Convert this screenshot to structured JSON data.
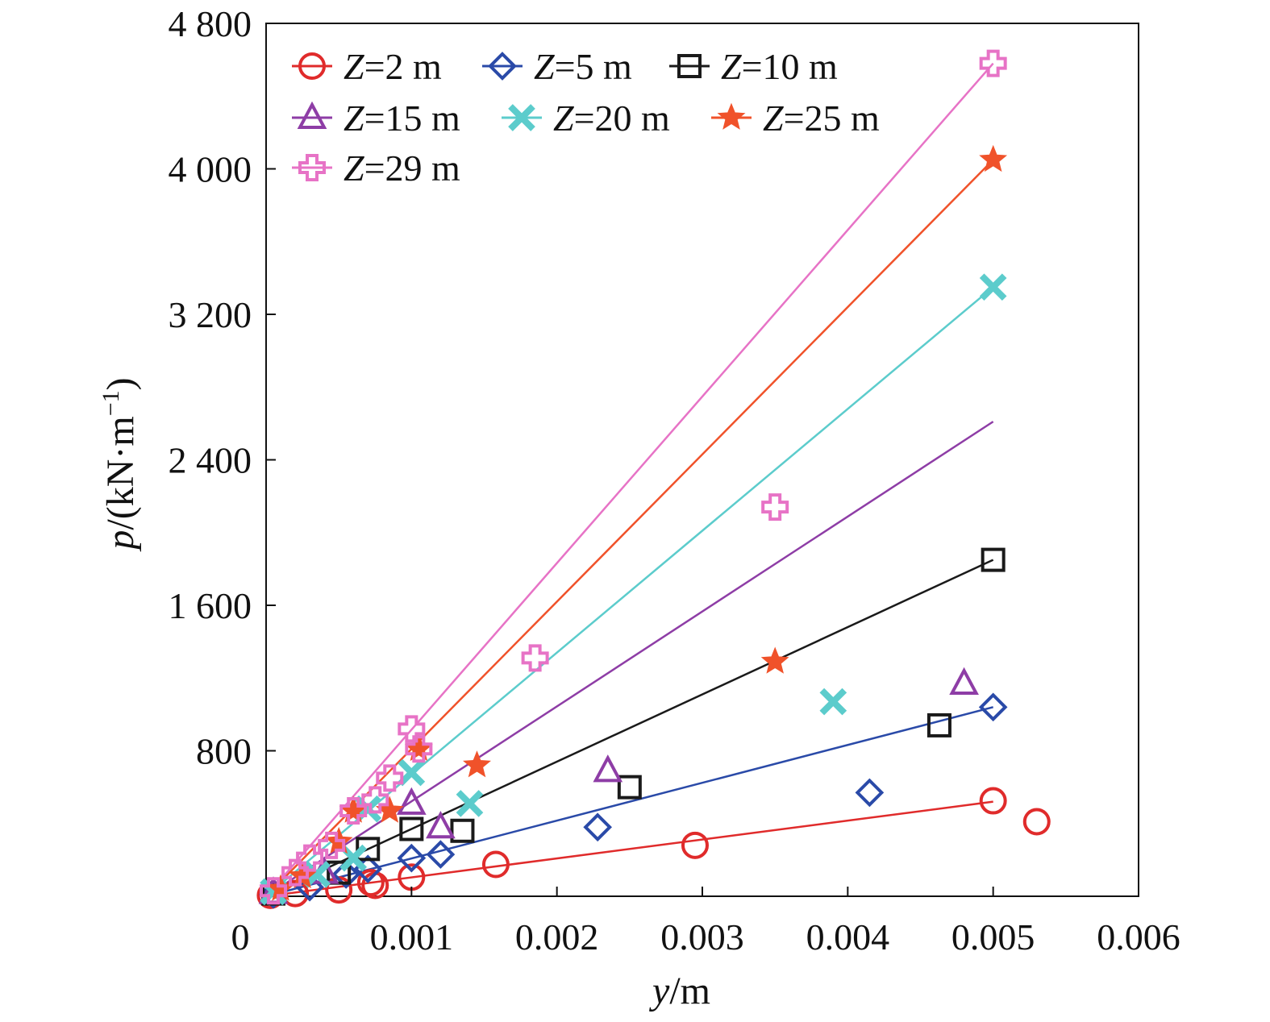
{
  "chart_data": {
    "type": "scatter",
    "xlabel": {
      "var": "y",
      "unit": "/m"
    },
    "ylabel": {
      "var": "p",
      "unit": "/(kN·m",
      "sup": "−1",
      "close": ")"
    },
    "xlim": [
      0,
      0.006
    ],
    "ylim": [
      0,
      4800
    ],
    "x_ticks": [
      0,
      0.001,
      0.002,
      0.003,
      0.004,
      0.005,
      0.006
    ],
    "x_tick_labels": [
      "0",
      "0.001",
      "0.002",
      "0.003",
      "0.004",
      "0.005",
      "0.006"
    ],
    "y_ticks": [
      800,
      1600,
      2400,
      3200,
      4000,
      4800
    ],
    "y_tick_labels": [
      "800",
      "1 600",
      "2 400",
      "3 200",
      "4 000",
      "4 800"
    ],
    "grid": false,
    "legend_position": "top-left",
    "series": [
      {
        "name_var": "Z",
        "name_rest": "=2 m",
        "color": "#e02b2b",
        "marker": "circle",
        "points": [
          [
            3e-05,
            5
          ],
          [
            0.0002,
            15
          ],
          [
            0.0005,
            35
          ],
          [
            0.00072,
            75
          ],
          [
            0.00075,
            60
          ],
          [
            0.001,
            105
          ],
          [
            0.00158,
            175
          ],
          [
            0.00295,
            280
          ],
          [
            0.005,
            525
          ],
          [
            0.0053,
            410
          ]
        ],
        "line": [
          [
            0,
            0
          ],
          [
            0.005,
            520
          ]
        ]
      },
      {
        "name_var": "Z",
        "name_rest": "=5 m",
        "color": "#2a4aa8",
        "marker": "diamond",
        "points": [
          [
            5e-05,
            10
          ],
          [
            0.0003,
            50
          ],
          [
            0.00055,
            120
          ],
          [
            0.0007,
            150
          ],
          [
            0.001,
            210
          ],
          [
            0.0012,
            230
          ],
          [
            0.00228,
            380
          ],
          [
            0.00415,
            570
          ],
          [
            0.005,
            1040
          ]
        ],
        "line": [
          [
            0,
            0
          ],
          [
            0.005,
            1040
          ]
        ]
      },
      {
        "name_var": "Z",
        "name_rest": "=10 m",
        "color": "#1a1a1a",
        "marker": "square",
        "points": [
          [
            5e-05,
            15
          ],
          [
            0.0005,
            130
          ],
          [
            0.0007,
            260
          ],
          [
            0.001,
            370
          ],
          [
            0.00135,
            360
          ],
          [
            0.0025,
            600
          ],
          [
            0.00463,
            940
          ],
          [
            0.005,
            1850
          ]
        ],
        "line": [
          [
            0,
            0
          ],
          [
            0.005,
            1850
          ]
        ]
      },
      {
        "name_var": "Z",
        "name_rest": "=15 m",
        "color": "#8e3da6",
        "marker": "triangle",
        "points": [
          [
            5e-05,
            20
          ],
          [
            0.0004,
            130
          ],
          [
            0.001,
            510
          ],
          [
            0.0012,
            380
          ],
          [
            0.00235,
            690
          ],
          [
            0.0048,
            1170
          ]
        ],
        "line": [
          [
            0,
            0
          ],
          [
            0.005,
            2610
          ]
        ]
      },
      {
        "name_var": "Z",
        "name_rest": "=20 m",
        "color": "#5ccccc",
        "marker": "x",
        "points": [
          [
            5e-05,
            25
          ],
          [
            0.00035,
            120
          ],
          [
            0.0006,
            210
          ],
          [
            0.0007,
            480
          ],
          [
            0.001,
            680
          ],
          [
            0.0014,
            510
          ],
          [
            0.0039,
            1070
          ],
          [
            0.005,
            3350
          ]
        ],
        "line": [
          [
            0,
            0
          ],
          [
            0.005,
            3350
          ]
        ]
      },
      {
        "name_var": "Z",
        "name_rest": "=25 m",
        "color": "#f0522a",
        "marker": "star",
        "points": [
          [
            0.0001,
            40
          ],
          [
            0.00025,
            110
          ],
          [
            0.0005,
            300
          ],
          [
            0.0006,
            470
          ],
          [
            0.00085,
            470
          ],
          [
            0.00105,
            810
          ],
          [
            0.00145,
            720
          ],
          [
            0.0035,
            1290
          ],
          [
            0.005,
            4050
          ]
        ],
        "line": [
          [
            0,
            0
          ],
          [
            0.005,
            4050
          ]
        ]
      },
      {
        "name_var": "Z",
        "name_rest": "=29 m",
        "color": "#e773c6",
        "marker": "cross",
        "points": [
          [
            5e-05,
            30
          ],
          [
            0.0002,
            130
          ],
          [
            0.0003,
            210
          ],
          [
            0.00045,
            280
          ],
          [
            0.0006,
            470
          ],
          [
            0.00075,
            530
          ],
          [
            0.00085,
            650
          ],
          [
            0.001,
            920
          ],
          [
            0.00105,
            810
          ],
          [
            0.00185,
            1310
          ],
          [
            0.0035,
            2140
          ],
          [
            0.005,
            4580
          ]
        ],
        "line": [
          [
            0,
            0
          ],
          [
            0.005,
            4580
          ]
        ]
      }
    ]
  }
}
